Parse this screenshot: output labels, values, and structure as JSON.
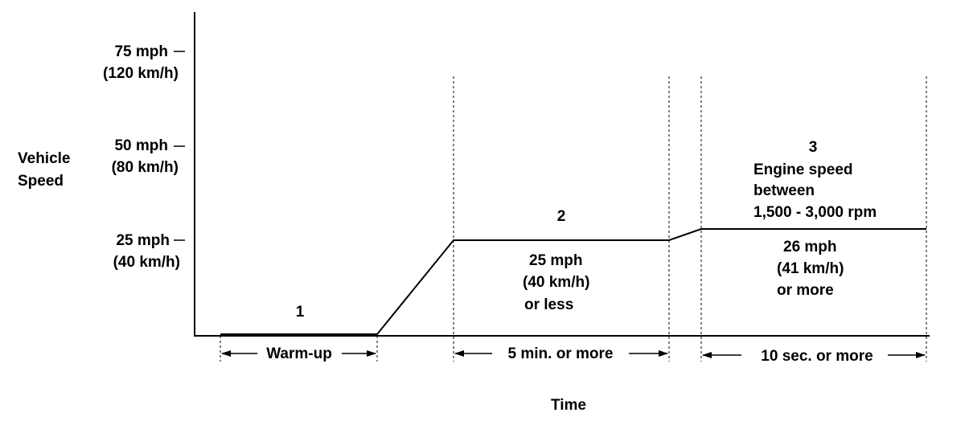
{
  "axes": {
    "y_label_line1": "Vehicle",
    "y_label_line2": "Speed",
    "x_label": "Time",
    "ticks": [
      {
        "mph": "75 mph",
        "kmh": "(120 km/h)"
      },
      {
        "mph": "50 mph",
        "kmh": "(80 km/h)"
      },
      {
        "mph": "25 mph",
        "kmh": "(40 km/h)"
      }
    ]
  },
  "phases": [
    {
      "number": "1",
      "duration": "Warm-up"
    },
    {
      "number": "2",
      "speed_line1": "25 mph",
      "speed_line2": "(40 km/h)",
      "speed_line3": "or less",
      "duration": "5 min. or more"
    },
    {
      "number": "3",
      "note_line1": "Engine speed",
      "note_line2": "between",
      "note_line3": "1,500 - 3,000 rpm",
      "speed_line1": "26 mph",
      "speed_line2": "(41 km/h)",
      "speed_line3": "or more",
      "duration": "10 sec. or more"
    }
  ]
}
